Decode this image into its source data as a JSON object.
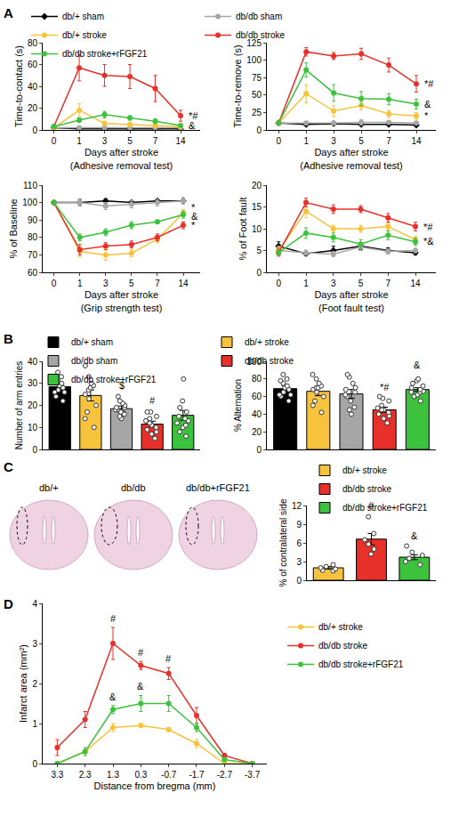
{
  "chart_data": [
    {
      "type": "line",
      "panel": "A",
      "legend": "top",
      "grid": false,
      "y_label": "Time-to-contact (s)",
      "x_label": "Days after stroke\n(Adhesive removal test)",
      "categories": [
        "0",
        "1",
        "3",
        "5",
        "7",
        "14"
      ],
      "ylim": [
        0,
        80
      ],
      "yticks": [
        0,
        20,
        40,
        60,
        80
      ],
      "series": [
        {
          "name": "db/+ sham",
          "color": "#000000",
          "marker": "diamond",
          "values": [
            2,
            1,
            1,
            1,
            1,
            1
          ],
          "errors": [
            0.5,
            0.5,
            0.5,
            0.5,
            0.5,
            0.5
          ]
        },
        {
          "name": "db/db sham",
          "color": "#a6a6a6",
          "marker": "circle",
          "values": [
            2,
            2,
            2,
            2,
            2,
            2
          ],
          "errors": [
            0.5,
            0.5,
            0.5,
            0.5,
            0.5,
            0.5
          ]
        },
        {
          "name": "db/+ stroke",
          "color": "#f7c33c",
          "marker": "circle",
          "values": [
            2,
            18,
            6,
            5,
            4,
            3
          ],
          "errors": [
            0.5,
            6,
            2,
            2,
            1.5,
            1
          ]
        },
        {
          "name": "db/db stroke",
          "color": "#e8302a",
          "marker": "circle",
          "values": [
            3,
            57,
            50,
            49,
            38,
            13
          ],
          "errors": [
            0.5,
            12,
            10,
            11,
            12,
            5
          ]
        },
        {
          "name": "db/db stroke+rFGF21",
          "color": "#3dc23d",
          "marker": "circle",
          "values": [
            3,
            9,
            14,
            11,
            8,
            4
          ],
          "errors": [
            0.5,
            2,
            3,
            2,
            2,
            1
          ]
        }
      ],
      "annotations": [
        {
          "text": "*#",
          "x": "14",
          "y": 13
        },
        {
          "text": "&",
          "x": "14",
          "y": 4
        }
      ]
    },
    {
      "type": "line",
      "grid": false,
      "y_label": "Time-to-remove (s)",
      "x_label": "Days after stroke\n(Adhesive removal test)",
      "categories": [
        "0",
        "1",
        "3",
        "5",
        "7",
        "14"
      ],
      "ylim": [
        0,
        125
      ],
      "yticks": [
        0,
        25,
        50,
        75,
        100,
        125
      ],
      "series": [
        {
          "name": "db/+ sham",
          "color": "#000000",
          "marker": "diamond",
          "values": [
            10,
            8,
            9,
            8,
            8,
            7
          ],
          "errors": [
            1,
            1,
            1,
            1,
            1,
            1
          ]
        },
        {
          "name": "db/db sham",
          "color": "#a6a6a6",
          "marker": "circle",
          "values": [
            10,
            10,
            10,
            11,
            11,
            10
          ],
          "errors": [
            1,
            1.5,
            1.5,
            4,
            2,
            1.5
          ]
        },
        {
          "name": "db/+ stroke",
          "color": "#f7c33c",
          "marker": "circle",
          "values": [
            10,
            52,
            27,
            35,
            23,
            20
          ],
          "errors": [
            1,
            13,
            8,
            6,
            5,
            5
          ]
        },
        {
          "name": "db/db stroke",
          "color": "#e8302a",
          "marker": "circle",
          "values": [
            10,
            112,
            106,
            109,
            93,
            66
          ],
          "errors": [
            1,
            6,
            5,
            8,
            10,
            12
          ]
        },
        {
          "name": "db/db stroke+rFGF21",
          "color": "#3dc23d",
          "marker": "circle",
          "values": [
            10,
            86,
            53,
            45,
            44,
            37
          ],
          "errors": [
            1,
            10,
            12,
            10,
            8,
            7
          ]
        }
      ],
      "annotations": [
        {
          "text": "*#",
          "x": "14",
          "y": 66
        },
        {
          "text": "&",
          "x": "14",
          "y": 37
        },
        {
          "text": "*",
          "x": "14",
          "y": 20
        }
      ]
    },
    {
      "type": "line",
      "grid": false,
      "y_label": "% of Baseline",
      "x_label": "Days after stroke\n(Grip strength test)",
      "categories": [
        "0",
        "1",
        "3",
        "5",
        "7",
        "14"
      ],
      "ylim": [
        60,
        110
      ],
      "yticks": [
        60,
        70,
        80,
        90,
        100,
        110
      ],
      "series": [
        {
          "name": "db/+ sham",
          "color": "#000000",
          "marker": "diamond",
          "values": [
            100,
            100,
            101,
            100,
            101,
            101
          ],
          "errors": [
            0,
            2,
            1,
            1,
            1,
            1
          ]
        },
        {
          "name": "db/db sham",
          "color": "#a6a6a6",
          "marker": "circle",
          "values": [
            100,
            100,
            98,
            99,
            100,
            101
          ],
          "errors": [
            0,
            2,
            2,
            2,
            2,
            2
          ]
        },
        {
          "name": "db/+ stroke",
          "color": "#f7c33c",
          "marker": "circle",
          "values": [
            100,
            72,
            70,
            71,
            79,
            94
          ],
          "errors": [
            0,
            3,
            3,
            2,
            2,
            2
          ]
        },
        {
          "name": "db/db stroke",
          "color": "#e8302a",
          "marker": "circle",
          "values": [
            100,
            73,
            75,
            76,
            80,
            87
          ],
          "errors": [
            0,
            3,
            2,
            2,
            2,
            2
          ]
        },
        {
          "name": "db/db stroke+rFGF21",
          "color": "#3dc23d",
          "marker": "circle",
          "values": [
            100,
            80,
            83,
            87,
            89,
            93
          ],
          "errors": [
            0,
            2,
            2,
            2,
            1,
            2
          ]
        }
      ],
      "annotations": [
        {
          "text": "*",
          "x": "14",
          "y": 97
        },
        {
          "text": "&",
          "x": "14",
          "y": 92
        },
        {
          "text": "*",
          "x": "14",
          "y": 87
        }
      ]
    },
    {
      "type": "line",
      "grid": false,
      "y_label": "% of Foot fault",
      "x_label": "Days after stroke\n(Foot fault test)",
      "categories": [
        "0",
        "1",
        "3",
        "5",
        "7",
        "14"
      ],
      "ylim": [
        0,
        20
      ],
      "yticks": [
        0,
        5,
        10,
        15,
        20
      ],
      "series": [
        {
          "name": "db/+ sham",
          "color": "#000000",
          "marker": "diamond",
          "values": [
            6,
            4.3,
            5,
            6,
            5,
            4.5
          ],
          "errors": [
            1,
            0.5,
            1,
            0.8,
            0.6,
            0.5
          ]
        },
        {
          "name": "db/db sham",
          "color": "#a6a6a6",
          "marker": "circle",
          "values": [
            5,
            4.5,
            4.2,
            5.8,
            4.8,
            5
          ],
          "errors": [
            1,
            0.6,
            0.6,
            0.8,
            0.6,
            0.5
          ]
        },
        {
          "name": "db/+ stroke",
          "color": "#f7c33c",
          "marker": "circle",
          "values": [
            5,
            14,
            10,
            10,
            10.5,
            7.5
          ],
          "errors": [
            0.8,
            1.5,
            0.8,
            0.8,
            0.8,
            0.8
          ]
        },
        {
          "name": "db/db stroke",
          "color": "#e8302a",
          "marker": "circle",
          "values": [
            4.5,
            16,
            14.5,
            14.5,
            12.5,
            10.5
          ],
          "errors": [
            0.8,
            1,
            1,
            0.8,
            1,
            1
          ]
        },
        {
          "name": "db/db stroke+rFGF21",
          "color": "#3dc23d",
          "marker": "circle",
          "values": [
            4.5,
            9,
            8,
            6.5,
            8.5,
            7
          ],
          "errors": [
            0.5,
            1.2,
            1,
            1,
            1,
            0.8
          ]
        }
      ],
      "annotations": [
        {
          "text": "*#",
          "x": "14",
          "y": 10.5
        },
        {
          "text": "*&",
          "x": "14",
          "y": 7.2
        }
      ]
    },
    {
      "type": "bar",
      "panel": "B",
      "legend": "top",
      "grid": false,
      "tick_labels": "y",
      "y_label": "Number of arm entries",
      "categories": [
        "db/+ sham",
        "db/+ stroke",
        "db/db sham",
        "db/db stroke",
        "db/db stroke+rFGF21"
      ],
      "colors": [
        "#000000",
        "#f7c33c",
        "#a6a6a6",
        "#e8302a",
        "#3dc23d"
      ],
      "values": [
        28.5,
        24.5,
        18.5,
        11.5,
        15.5
      ],
      "errors": [
        1.3,
        2.5,
        1.2,
        1.3,
        2.2
      ],
      "points": [
        [
          22,
          24,
          26,
          27,
          28,
          29,
          30,
          31,
          32,
          33,
          35,
          26
        ],
        [
          10,
          14,
          17,
          20,
          23,
          25,
          27,
          28,
          29,
          30,
          33,
          38
        ],
        [
          14,
          15,
          16,
          17,
          18,
          18,
          19,
          20,
          21,
          22,
          24,
          19
        ],
        [
          5,
          7,
          8,
          9,
          10,
          11,
          12,
          13,
          14,
          15,
          17,
          17
        ],
        [
          6,
          8,
          10,
          11,
          12,
          13,
          14,
          15,
          17,
          19,
          22,
          32
        ]
      ],
      "ylim": [
        0,
        40
      ],
      "yticks": [
        0,
        10,
        20,
        30,
        40
      ],
      "annotations": [
        {
          "text": "$",
          "x": "db/db sham",
          "y": 26
        },
        {
          "text": "#",
          "x": "db/db stroke",
          "y": 19
        }
      ]
    },
    {
      "type": "bar",
      "grid": false,
      "tick_labels": "y",
      "y_label": "% Alternation",
      "categories": [
        "db/+ sham",
        "db/+ stroke",
        "db/db sham",
        "db/db stroke",
        "db/db stroke+rFGF21"
      ],
      "colors": [
        "#000000",
        "#f7c33c",
        "#a6a6a6",
        "#e8302a",
        "#3dc23d"
      ],
      "values": [
        69,
        66,
        63,
        45,
        68
      ],
      "errors": [
        3,
        5,
        5,
        3,
        2
      ],
      "points": [
        [
          55,
          60,
          62,
          65,
          68,
          70,
          72,
          75,
          78,
          80,
          62,
          85
        ],
        [
          42,
          50,
          55,
          60,
          65,
          68,
          70,
          75,
          80,
          85,
          70,
          72
        ],
        [
          40,
          48,
          55,
          60,
          62,
          65,
          68,
          70,
          75,
          82,
          85,
          45
        ],
        [
          30,
          35,
          38,
          40,
          42,
          45,
          47,
          50,
          55,
          58,
          60,
          45
        ],
        [
          55,
          60,
          62,
          65,
          68,
          70,
          72,
          75,
          78,
          80,
          66,
          65
        ]
      ],
      "ylim": [
        0,
        100
      ],
      "yticks": [
        0,
        20,
        40,
        60,
        80,
        100
      ],
      "annotations": [
        {
          "text": "*#",
          "x": "db/db stroke",
          "y": 63
        },
        {
          "text": "&",
          "x": "db/db stroke+rFGF21",
          "y": 88
        }
      ]
    },
    {
      "type": "image",
      "panel": "C",
      "labels": [
        "db/+",
        "db/db",
        "db/db+rFGF21"
      ]
    },
    {
      "type": "bar",
      "legend": "top",
      "grid": false,
      "tick_labels": "y",
      "y_label": "% of contralateral side",
      "categories": [
        "db/+ stroke",
        "db/db stroke",
        "db/db stroke+rFGF21"
      ],
      "colors": [
        "#f7c33c",
        "#e8302a",
        "#3dc23d"
      ],
      "values": [
        2,
        6.6,
        3.7
      ],
      "errors": [
        0.2,
        0.9,
        0.4
      ],
      "points": [
        [
          1.5,
          1.8,
          2.0,
          2.2,
          2.5,
          1.6
        ],
        [
          4.2,
          5.0,
          5.8,
          6.5,
          7.5,
          10.2
        ],
        [
          2.5,
          3.0,
          3.5,
          4.0,
          4.5,
          5.5
        ]
      ],
      "ylim": [
        0,
        12
      ],
      "yticks": [
        0,
        3,
        6,
        9,
        12
      ],
      "annotations": [
        {
          "text": "#",
          "x": "db/db stroke",
          "y": 10.8
        },
        {
          "text": "&",
          "x": "db/db stroke+rFGF21",
          "y": 6
        }
      ]
    },
    {
      "type": "line",
      "panel": "D",
      "legend": "right",
      "grid": false,
      "y_label": "Infarct area (mm²)",
      "x_label": "Distance from bregma (mm)",
      "categories": [
        "3.3",
        "2.3",
        "1.3",
        "0.3",
        "-0.7",
        "-1.7",
        "-2.7",
        "-3.7"
      ],
      "ylim": [
        0,
        4
      ],
      "yticks": [
        0,
        1,
        2,
        3,
        4
      ],
      "series": [
        {
          "name": "db/+ stroke",
          "color": "#f7c33c",
          "marker": "circle",
          "values": [
            0,
            0.3,
            0.9,
            0.95,
            0.85,
            0.5,
            0,
            0
          ],
          "errors": [
            0,
            0.05,
            0.1,
            0.05,
            0.05,
            0.1,
            0,
            0
          ]
        },
        {
          "name": "db/db stroke",
          "color": "#e8302a",
          "marker": "circle",
          "values": [
            0.4,
            1.1,
            3.0,
            2.45,
            2.25,
            1.2,
            0.2,
            0
          ],
          "errors": [
            0.2,
            0.2,
            0.4,
            0.1,
            0.15,
            0.2,
            0.05,
            0
          ]
        },
        {
          "name": "db/db stroke+rFGF21",
          "color": "#3dc23d",
          "marker": "circle",
          "values": [
            0,
            0.3,
            1.35,
            1.5,
            1.5,
            0.9,
            0.1,
            0
          ],
          "errors": [
            0,
            0.1,
            0.1,
            0.2,
            0.2,
            0.1,
            0.05,
            0
          ]
        }
      ],
      "annotations": [
        {
          "text": "#",
          "x": "1.3",
          "y": 3.45
        },
        {
          "text": "#",
          "x": "0.3",
          "y": 2.6
        },
        {
          "text": "#",
          "x": "-0.7",
          "y": 2.45
        },
        {
          "text": "&",
          "x": "1.3",
          "y": 1.5
        },
        {
          "text": "&",
          "x": "0.3",
          "y": 1.75
        }
      ]
    }
  ]
}
